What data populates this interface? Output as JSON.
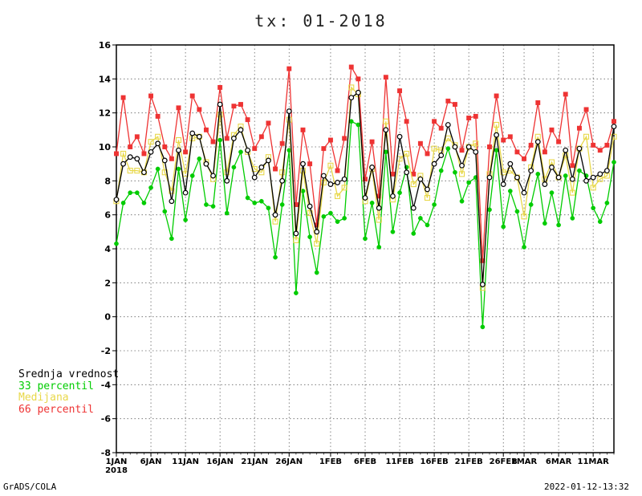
{
  "chart_data": {
    "type": "line",
    "title": "tx: 01-2018",
    "xlabel": "",
    "ylabel": "",
    "ylim": [
      -8,
      16
    ],
    "yticks": [
      -8,
      -6,
      -4,
      -2,
      0,
      2,
      4,
      6,
      8,
      10,
      12,
      14,
      16
    ],
    "year_label": "2018",
    "x_start": "2018-01-01",
    "x_end": "2018-03-16",
    "xticks": [
      {
        "day": 0,
        "label": "1JAN"
      },
      {
        "day": 5,
        "label": "6JAN"
      },
      {
        "day": 10,
        "label": "11JAN"
      },
      {
        "day": 15,
        "label": "16JAN"
      },
      {
        "day": 20,
        "label": "21JAN"
      },
      {
        "day": 25,
        "label": "26JAN"
      },
      {
        "day": 31,
        "label": "1FEB"
      },
      {
        "day": 36,
        "label": "6FEB"
      },
      {
        "day": 41,
        "label": "11FEB"
      },
      {
        "day": 46,
        "label": "16FEB"
      },
      {
        "day": 51,
        "label": "21FEB"
      },
      {
        "day": 56,
        "label": "26FEB"
      },
      {
        "day": 59,
        "label": "1MAR"
      },
      {
        "day": 64,
        "label": "6MAR"
      },
      {
        "day": 69,
        "label": "11MAR"
      }
    ],
    "grid": true,
    "legend_position": "left",
    "series": [
      {
        "name": "Srednja vrednost",
        "color": "#000000",
        "marker": "circle-open",
        "values": [
          6.9,
          9.0,
          9.4,
          9.3,
          8.5,
          9.7,
          10.2,
          9.2,
          6.8,
          9.8,
          7.3,
          10.8,
          10.6,
          9.0,
          8.3,
          12.5,
          8.0,
          10.5,
          11.0,
          9.8,
          8.2,
          8.8,
          9.2,
          6.0,
          8.0,
          12.1,
          4.9,
          9.0,
          6.5,
          5.0,
          8.3,
          7.8,
          7.9,
          8.1,
          12.9,
          13.2,
          7.0,
          8.8,
          6.4,
          11.0,
          7.1,
          10.6,
          8.5,
          6.4,
          8.1,
          7.5,
          9.0,
          9.5,
          11.3,
          10.0,
          8.9,
          10.0,
          9.7,
          1.9,
          8.2,
          10.7,
          7.8,
          9.0,
          8.2,
          7.3,
          8.6,
          10.3,
          7.8,
          8.8,
          8.2,
          9.8,
          8.1,
          9.9,
          8.0,
          8.2,
          8.4,
          8.6,
          11.2
        ]
      },
      {
        "name": "33 percentil",
        "color": "#00cc00",
        "marker": "diamond",
        "values": [
          4.3,
          6.7,
          7.3,
          7.3,
          6.7,
          7.6,
          8.7,
          6.2,
          4.6,
          8.7,
          5.7,
          8.3,
          9.3,
          6.6,
          6.5,
          10.4,
          6.1,
          8.8,
          9.7,
          7.0,
          6.7,
          6.8,
          6.4,
          3.5,
          6.6,
          9.8,
          1.4,
          7.4,
          4.7,
          2.6,
          5.9,
          6.1,
          5.6,
          5.8,
          11.5,
          11.3,
          4.6,
          6.7,
          4.1,
          9.7,
          5.0,
          7.3,
          8.8,
          4.9,
          5.8,
          5.4,
          6.6,
          8.6,
          9.9,
          8.5,
          6.8,
          7.9,
          8.2,
          -0.6,
          6.3,
          9.8,
          5.3,
          7.4,
          6.2,
          4.1,
          6.6,
          8.4,
          5.5,
          7.3,
          5.4,
          8.3,
          5.8,
          8.6,
          8.3,
          6.4,
          5.6,
          6.7,
          9.1
        ]
      },
      {
        "name": "Medijana",
        "color": "#e8d84a",
        "marker": "square-open",
        "values": [
          6.8,
          9.6,
          8.6,
          8.6,
          8.5,
          10.3,
          10.6,
          8.5,
          7.4,
          10.4,
          8.4,
          10.5,
          10.6,
          9.1,
          8.1,
          11.9,
          8.5,
          10.7,
          11.2,
          9.7,
          8.7,
          8.5,
          9.4,
          5.6,
          8.5,
          11.6,
          4.5,
          8.6,
          6.1,
          4.3,
          7.9,
          8.9,
          7.1,
          7.6,
          13.5,
          13.1,
          6.8,
          8.7,
          5.7,
          11.5,
          6.9,
          9.3,
          9.6,
          7.8,
          8.3,
          7.0,
          9.9,
          9.8,
          10.5,
          10.1,
          8.4,
          10.0,
          10.2,
          1.7,
          8.4,
          11.3,
          8.5,
          8.6,
          8.2,
          5.9,
          8.8,
          10.6,
          8.1,
          9.1,
          8.2,
          9.5,
          7.3,
          9.9,
          10.6,
          7.6,
          8.1,
          8.3,
          10.6
        ]
      },
      {
        "name": "66 percentil",
        "color": "#ee3333",
        "marker": "square-filled",
        "values": [
          9.6,
          12.9,
          10.0,
          10.6,
          9.6,
          13.0,
          11.8,
          10.0,
          9.3,
          12.3,
          9.7,
          13.0,
          12.2,
          11.0,
          10.3,
          13.5,
          10.5,
          12.4,
          12.5,
          11.6,
          9.9,
          10.6,
          11.4,
          8.7,
          10.2,
          14.6,
          6.6,
          11.0,
          9.0,
          5.4,
          9.9,
          10.4,
          8.6,
          10.5,
          14.7,
          14.0,
          8.1,
          10.3,
          7.1,
          14.1,
          8.4,
          13.3,
          11.5,
          8.4,
          10.2,
          9.6,
          11.5,
          11.1,
          12.7,
          12.5,
          9.8,
          11.7,
          11.8,
          3.3,
          10.0,
          13.0,
          10.4,
          10.6,
          9.7,
          9.3,
          10.1,
          12.6,
          9.7,
          11.0,
          10.3,
          13.1,
          8.9,
          11.1,
          12.2,
          10.1,
          9.8,
          10.1,
          11.5
        ]
      }
    ]
  },
  "footer": {
    "left": "GrADS/COLA",
    "right": "2022-01-12-13:32"
  }
}
